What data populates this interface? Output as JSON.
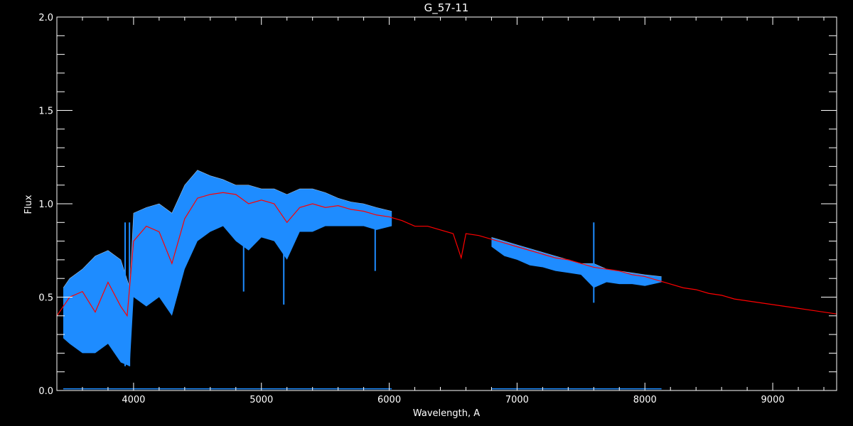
{
  "chart_data": {
    "type": "line",
    "title": "G_57-11",
    "xlabel": "Wavelength, A",
    "ylabel": "Flux",
    "xlim": [
      3400,
      9500
    ],
    "ylim": [
      0.0,
      2.0
    ],
    "x_ticks": [
      4000,
      5000,
      6000,
      7000,
      8000,
      9000
    ],
    "x_tick_labels": [
      "4000",
      "5000",
      "6000",
      "7000",
      "8000",
      "9000"
    ],
    "x_minor_step": 200,
    "y_ticks": [
      0.0,
      0.5,
      1.0,
      1.5,
      2.0
    ],
    "y_tick_labels": [
      "0.0",
      "0.5",
      "1.0",
      "1.5",
      "2.0"
    ],
    "y_minor_step": 0.1,
    "grid": false,
    "background": "#000000",
    "colors": {
      "observed": "#1e8cff",
      "model": "#ff0000",
      "axes": "#ffffff",
      "secondary": "#ffffff"
    },
    "series": [
      {
        "key": "observed",
        "style": "dense-spectrum band",
        "segments": [
          {
            "x": [
              3450,
              3500,
              3600,
              3700,
              3800,
              3900,
              3970,
              4000,
              4100,
              4200,
              4300,
              4400,
              4500,
              4600,
              4700,
              4800,
              4900,
              5000,
              5100,
              5200,
              5300,
              5400,
              5500,
              5600,
              5700,
              5800,
              5900,
              6020
            ],
            "upper": [
              0.55,
              0.6,
              0.65,
              0.72,
              0.75,
              0.7,
              0.55,
              0.95,
              0.98,
              1.0,
              0.95,
              1.1,
              1.18,
              1.15,
              1.13,
              1.1,
              1.1,
              1.08,
              1.08,
              1.05,
              1.08,
              1.08,
              1.06,
              1.03,
              1.01,
              1.0,
              0.98,
              0.96
            ],
            "lower": [
              0.28,
              0.25,
              0.2,
              0.2,
              0.25,
              0.15,
              0.13,
              0.5,
              0.45,
              0.5,
              0.4,
              0.65,
              0.8,
              0.85,
              0.88,
              0.8,
              0.75,
              0.82,
              0.8,
              0.7,
              0.85,
              0.85,
              0.88,
              0.88,
              0.88,
              0.88,
              0.86,
              0.88
            ]
          },
          {
            "x": [
              6800,
              6900,
              7000,
              7100,
              7200,
              7300,
              7400,
              7500,
              7600,
              7700,
              7800,
              7900,
              8000,
              8130
            ],
            "upper": [
              0.82,
              0.8,
              0.78,
              0.76,
              0.74,
              0.72,
              0.7,
              0.68,
              0.68,
              0.65,
              0.64,
              0.63,
              0.62,
              0.61
            ],
            "lower": [
              0.77,
              0.72,
              0.7,
              0.67,
              0.66,
              0.64,
              0.63,
              0.62,
              0.55,
              0.58,
              0.57,
              0.57,
              0.56,
              0.58
            ]
          }
        ],
        "absorption_lines": [
          {
            "x": 3934,
            "min": 0.13
          },
          {
            "x": 3968,
            "min": 0.13
          },
          {
            "x": 4861,
            "min": 0.53
          },
          {
            "x": 5175,
            "min": 0.46
          },
          {
            "x": 5890,
            "min": 0.64
          },
          {
            "x": 7600,
            "min": 0.47
          }
        ]
      },
      {
        "key": "observed-error",
        "style": "line",
        "segments": [
          {
            "x": [
              3450,
              6020
            ],
            "y": [
              0.005,
              0.005
            ]
          },
          {
            "x": [
              6800,
              8130
            ],
            "y": [
              0.005,
              0.005
            ]
          }
        ]
      },
      {
        "key": "model",
        "style": "line",
        "x": [
          3400,
          3500,
          3600,
          3700,
          3800,
          3900,
          3950,
          4000,
          4100,
          4200,
          4300,
          4400,
          4500,
          4600,
          4700,
          4800,
          4900,
          5000,
          5100,
          5200,
          5300,
          5400,
          5500,
          5600,
          5700,
          5800,
          5900,
          6000,
          6100,
          6200,
          6300,
          6400,
          6500,
          6563,
          6600,
          6700,
          6800,
          6900,
          7000,
          7100,
          7200,
          7300,
          7400,
          7500,
          7600,
          7700,
          7800,
          7900,
          8000,
          8100,
          8200,
          8300,
          8400,
          8500,
          8600,
          8700,
          8800,
          8900,
          9000,
          9100,
          9200,
          9300,
          9400,
          9500
        ],
        "y": [
          0.4,
          0.5,
          0.53,
          0.42,
          0.58,
          0.45,
          0.4,
          0.8,
          0.88,
          0.85,
          0.68,
          0.92,
          1.03,
          1.05,
          1.06,
          1.05,
          1.0,
          1.02,
          1.0,
          0.9,
          0.98,
          1.0,
          0.98,
          0.99,
          0.97,
          0.96,
          0.94,
          0.93,
          0.91,
          0.88,
          0.88,
          0.86,
          0.84,
          0.71,
          0.84,
          0.83,
          0.81,
          0.79,
          0.77,
          0.75,
          0.73,
          0.71,
          0.7,
          0.68,
          0.66,
          0.65,
          0.64,
          0.62,
          0.61,
          0.59,
          0.57,
          0.55,
          0.54,
          0.52,
          0.51,
          0.49,
          0.48,
          0.47,
          0.46,
          0.45,
          0.44,
          0.43,
          0.42,
          0.41
        ]
      }
    ]
  }
}
